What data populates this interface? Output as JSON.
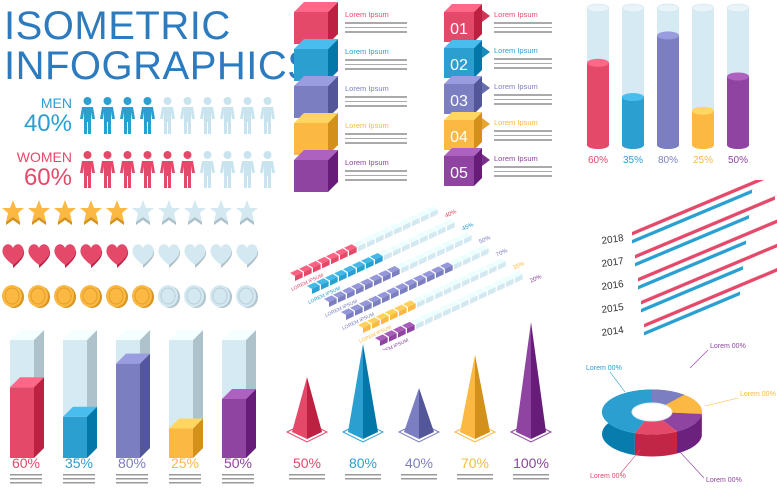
{
  "title": {
    "line1": "ISOMETRIC",
    "line2": "INFOGRAPHICS"
  },
  "colors": {
    "red": "#e5496a",
    "blue": "#2a9fd0",
    "violet": "#7b7ec1",
    "yellow": "#fbb843",
    "purple": "#8e44a0",
    "light": "#d6eaf4",
    "title": "#2c7bbf"
  },
  "gender": {
    "men": {
      "name": "MEN",
      "percent": "40%",
      "filled": 4,
      "total": 10
    },
    "women": {
      "name": "WOMEN",
      "percent": "60%",
      "filled": 6,
      "total": 10
    }
  },
  "ratings": {
    "stars": {
      "filled": 5,
      "total": 10
    },
    "hearts": {
      "filled": 5,
      "total": 10
    },
    "coins": {
      "filled": 6,
      "total": 10
    }
  },
  "bottom_cylinders": [
    {
      "label": "60%",
      "value": 60,
      "color": "#e5496a"
    },
    {
      "label": "35%",
      "value": 35,
      "color": "#2a9fd0"
    },
    {
      "label": "80%",
      "value": 80,
      "color": "#7b7ec1"
    },
    {
      "label": "25%",
      "value": 25,
      "color": "#fbb843"
    },
    {
      "label": "50%",
      "value": 50,
      "color": "#8e44a0"
    }
  ],
  "puzzle": {
    "items": [
      {
        "title": "Lorem Ipsum",
        "color": "#e5496a"
      },
      {
        "title": "Lorem Ipsum",
        "color": "#2a9fd0"
      },
      {
        "title": "Lorem Ipsum",
        "color": "#7b7ec1"
      },
      {
        "title": "Lorem Ipsum",
        "color": "#fbb843"
      },
      {
        "title": "Lorem Ipsum",
        "color": "#8e44a0"
      }
    ]
  },
  "numbered": {
    "items": [
      {
        "num": "01",
        "title": "Lorem Ipsum",
        "color": "#e5496a"
      },
      {
        "num": "02",
        "title": "Lorem Ipsum",
        "color": "#2a9fd0"
      },
      {
        "num": "03",
        "title": "Lorem Ipsum",
        "color": "#7b7ec1"
      },
      {
        "num": "04",
        "title": "Lorem Ipsum",
        "color": "#fbb843"
      },
      {
        "num": "05",
        "title": "Lorem Ipsum",
        "color": "#8e44a0"
      }
    ]
  },
  "top_cylinders": [
    {
      "label": "60%",
      "value": 60,
      "color": "#e5496a"
    },
    {
      "label": "35%",
      "value": 35,
      "color": "#2a9fd0"
    },
    {
      "label": "80%",
      "value": 80,
      "color": "#7b7ec1"
    },
    {
      "label": "25%",
      "value": 25,
      "color": "#fbb843"
    },
    {
      "label": "50%",
      "value": 50,
      "color": "#8e44a0"
    }
  ],
  "iso_bars": {
    "rows": [
      {
        "label": "LOREM IPSUM",
        "pct": "40%",
        "value": 40,
        "color": "#e5496a"
      },
      {
        "label": "LOREM IPSUM",
        "pct": "45%",
        "value": 45,
        "color": "#2a9fd0"
      },
      {
        "label": "LOREM IPSUM",
        "pct": "50%",
        "value": 50,
        "color": "#7b7ec1"
      },
      {
        "label": "LOREM IPSUM",
        "pct": "70%",
        "value": 70,
        "color": "#7b7ec1"
      },
      {
        "label": "LOREM IPSUM",
        "pct": "35%",
        "value": 35,
        "color": "#fbb843"
      },
      {
        "label": "LOREM IPSUM",
        "pct": "20%",
        "value": 20,
        "color": "#8e44a0"
      }
    ]
  },
  "years": {
    "labels": [
      "2018",
      "2017",
      "2016",
      "2015",
      "2014"
    ]
  },
  "cones": [
    {
      "label": "50%",
      "value": 50,
      "color": "#e5496a"
    },
    {
      "label": "80%",
      "value": 80,
      "color": "#2a9fd0"
    },
    {
      "label": "40%",
      "value": 40,
      "color": "#7b7ec1"
    },
    {
      "label": "70%",
      "value": 70,
      "color": "#fbb843"
    },
    {
      "label": "100%",
      "value": 100,
      "color": "#8e44a0"
    }
  ],
  "donut": {
    "labels": [
      {
        "text": "Lorem 00%",
        "color": "#2a9fd0"
      },
      {
        "text": "Lorem 00%",
        "color": "#8e44a0"
      },
      {
        "text": "Lorem 00%",
        "color": "#fbb843"
      },
      {
        "text": "Lorem 00%",
        "color": "#e5496a"
      },
      {
        "text": "Lorem 00%",
        "color": "#8e44a0"
      }
    ]
  }
}
